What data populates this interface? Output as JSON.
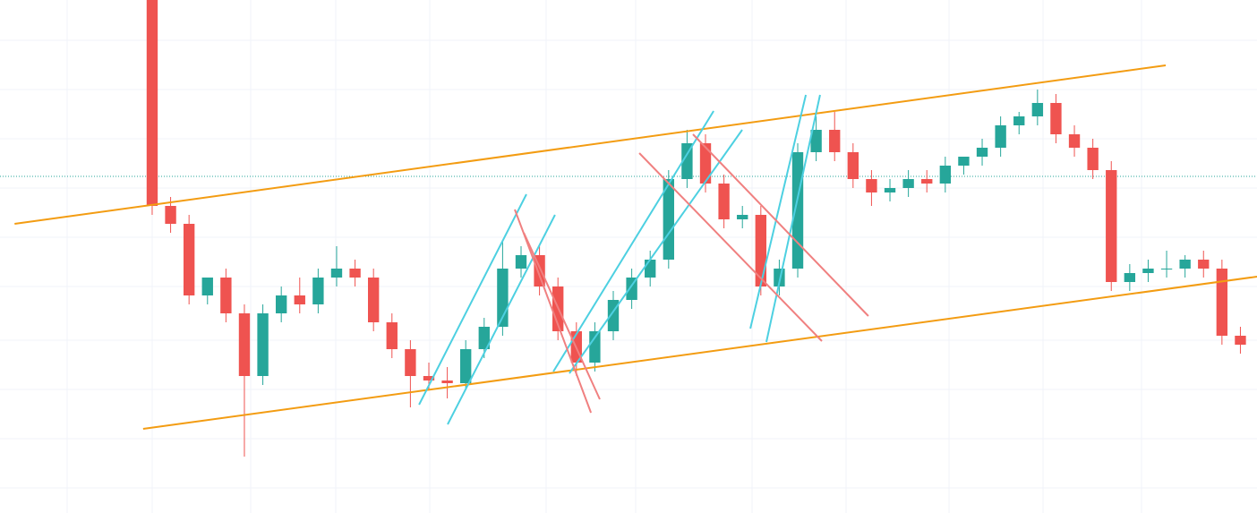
{
  "chart_data": {
    "type": "candlestick",
    "x": [
      0,
      1,
      2,
      3,
      4,
      5,
      6,
      7,
      8,
      9,
      10,
      11,
      12,
      13,
      14,
      15,
      16,
      17,
      18,
      19,
      20,
      21,
      22,
      23,
      24,
      25,
      26,
      27,
      28,
      29,
      30,
      31,
      32,
      33,
      34,
      35,
      36,
      37,
      38,
      39,
      40,
      41,
      42,
      43,
      44,
      45,
      46,
      47,
      48,
      49,
      50,
      51,
      52,
      53,
      54,
      55,
      56,
      57,
      58,
      59
    ],
    "open": [
      573,
      343,
      323,
      243,
      263,
      223,
      153,
      223,
      243,
      233,
      263,
      273,
      263,
      213,
      183,
      153,
      148,
      145,
      183,
      208,
      273,
      288,
      253,
      203,
      168,
      203,
      238,
      263,
      283,
      373,
      413,
      368,
      328,
      333,
      253,
      273,
      403,
      428,
      403,
      373,
      358,
      363,
      373,
      368,
      388,
      398,
      408,
      433,
      443,
      458,
      423,
      408,
      383,
      258,
      268,
      273,
      273,
      283,
      273,
      198
    ],
    "high": [
      573,
      353,
      333,
      263,
      273,
      233,
      233,
      253,
      263,
      273,
      298,
      283,
      273,
      223,
      193,
      168,
      163,
      193,
      218,
      303,
      298,
      298,
      263,
      213,
      213,
      248,
      273,
      293,
      383,
      428,
      423,
      378,
      343,
      343,
      283,
      413,
      443,
      448,
      413,
      383,
      373,
      383,
      383,
      398,
      398,
      418,
      443,
      448,
      473,
      468,
      433,
      418,
      393,
      278,
      283,
      293,
      288,
      293,
      283,
      208
    ],
    "low": [
      333,
      313,
      233,
      233,
      213,
      63,
      143,
      213,
      223,
      223,
      253,
      253,
      203,
      173,
      118,
      138,
      128,
      138,
      173,
      198,
      263,
      243,
      193,
      153,
      158,
      193,
      228,
      253,
      273,
      363,
      358,
      318,
      318,
      243,
      243,
      263,
      393,
      393,
      363,
      343,
      348,
      353,
      358,
      358,
      378,
      388,
      398,
      423,
      433,
      413,
      398,
      373,
      248,
      248,
      258,
      263,
      263,
      263,
      188,
      178
    ],
    "close": [
      343,
      323,
      243,
      263,
      223,
      153,
      223,
      243,
      233,
      263,
      273,
      263,
      213,
      183,
      153,
      148,
      145,
      183,
      208,
      273,
      288,
      253,
      203,
      168,
      203,
      238,
      263,
      283,
      373,
      413,
      368,
      328,
      333,
      253,
      273,
      403,
      428,
      403,
      373,
      358,
      363,
      373,
      368,
      388,
      398,
      408,
      433,
      443,
      458,
      423,
      408,
      383,
      258,
      268,
      273,
      273,
      283,
      273,
      198,
      188
    ],
    "up_color": "#26a69a",
    "down_color": "#ef5350",
    "xlim": [
      -8.25,
      59.9
    ],
    "ylim": [
      0,
      573
    ],
    "last_price": 376,
    "last_price_color": "#26a69a",
    "trendlines": [
      {
        "color": "#f39c12",
        "x": [
          -7.46,
          54.95
        ],
        "values": [
          323,
          500
        ]
      },
      {
        "color": "#f39c12",
        "x": [
          -0.49,
          59.9
        ],
        "values": [
          94,
          264
        ]
      },
      {
        "color": "#4dd0e1",
        "x": [
          14.47,
          20.29
        ],
        "values": [
          121,
          356
        ]
      },
      {
        "color": "#4dd0e1",
        "x": [
          16.02,
          21.84
        ],
        "values": [
          99,
          333
        ]
      },
      {
        "color": "#4dd0e1",
        "x": [
          21.75,
          30.44
        ],
        "values": [
          158,
          449
        ]
      },
      {
        "color": "#4dd0e1",
        "x": [
          22.62,
          31.99
        ],
        "values": [
          156,
          428
        ]
      },
      {
        "color": "#4dd0e1",
        "x": [
          32.43,
          35.44
        ],
        "values": [
          206,
          467
        ]
      },
      {
        "color": "#4dd0e1",
        "x": [
          33.3,
          36.21
        ],
        "values": [
          191,
          467
        ]
      },
      {
        "color": "#f08080",
        "x": [
          19.66,
          23.79
        ],
        "values": [
          339,
          112
        ]
      },
      {
        "color": "#f08080",
        "x": [
          20.15,
          24.27
        ],
        "values": [
          313,
          127
        ]
      },
      {
        "color": "#f08080",
        "x": [
          26.41,
          36.31
        ],
        "values": [
          402,
          192
        ]
      },
      {
        "color": "#f08080",
        "x": [
          29.32,
          38.83
        ],
        "values": [
          423,
          220
        ]
      }
    ]
  }
}
